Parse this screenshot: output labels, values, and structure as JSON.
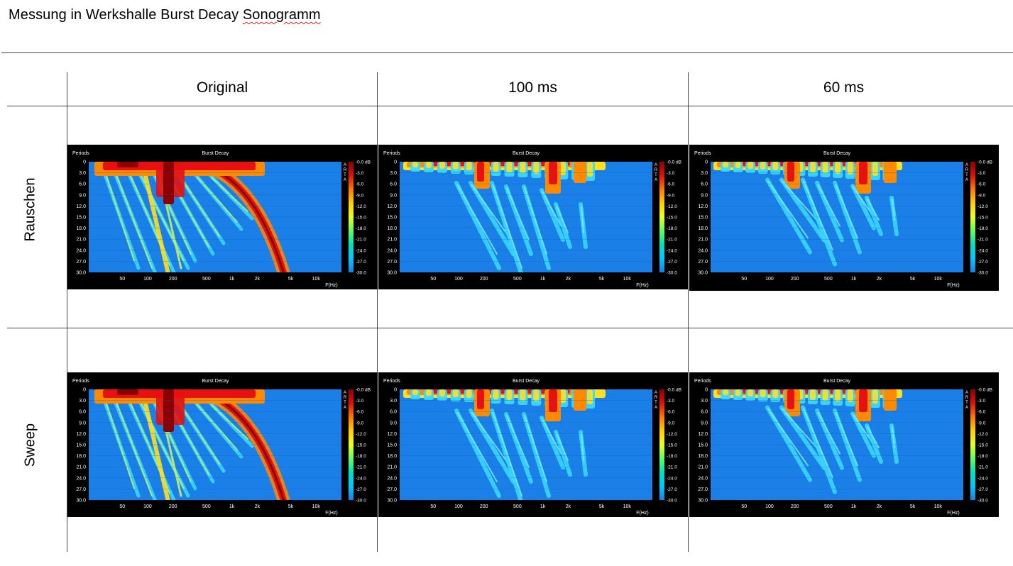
{
  "document": {
    "title_main": "Messung in Werkshalle Burst Decay ",
    "title_underlined": "Sonogramm",
    "columns": [
      "Original",
      "100 ms",
      "60 ms"
    ],
    "rows": [
      "Rauschen",
      "Sweep"
    ]
  },
  "plot": {
    "title": "Burst Decay",
    "ylabel": "Periods",
    "xlabel": "F(Hz)",
    "arta_letters": [
      "A",
      "R",
      "T",
      "A"
    ],
    "y_ticks": [
      "0",
      "3.0",
      "6.0",
      "9.0",
      "12.0",
      "15.0",
      "18.0",
      "21.0",
      "24.0",
      "27.0",
      "30.0"
    ],
    "x_ticks": [
      "50",
      "100",
      "200",
      "500",
      "1k",
      "2k",
      "5k",
      "10k"
    ],
    "scale_ticks": [
      "-0.0 dB",
      "-3.0",
      "-6.0",
      "-9.0",
      "-12.0",
      "-15.0",
      "-18.0",
      "-21.0",
      "-24.0",
      "-27.0",
      "-30.0"
    ],
    "colors": {
      "background": "#000000",
      "field": "#1a7fe6",
      "scale": [
        "#8b0000",
        "#e01010",
        "#ff7a00",
        "#ffd000",
        "#e8ff20",
        "#60ff60",
        "#00e0c0",
        "#00c8ff",
        "#1a7fe6"
      ]
    }
  }
}
